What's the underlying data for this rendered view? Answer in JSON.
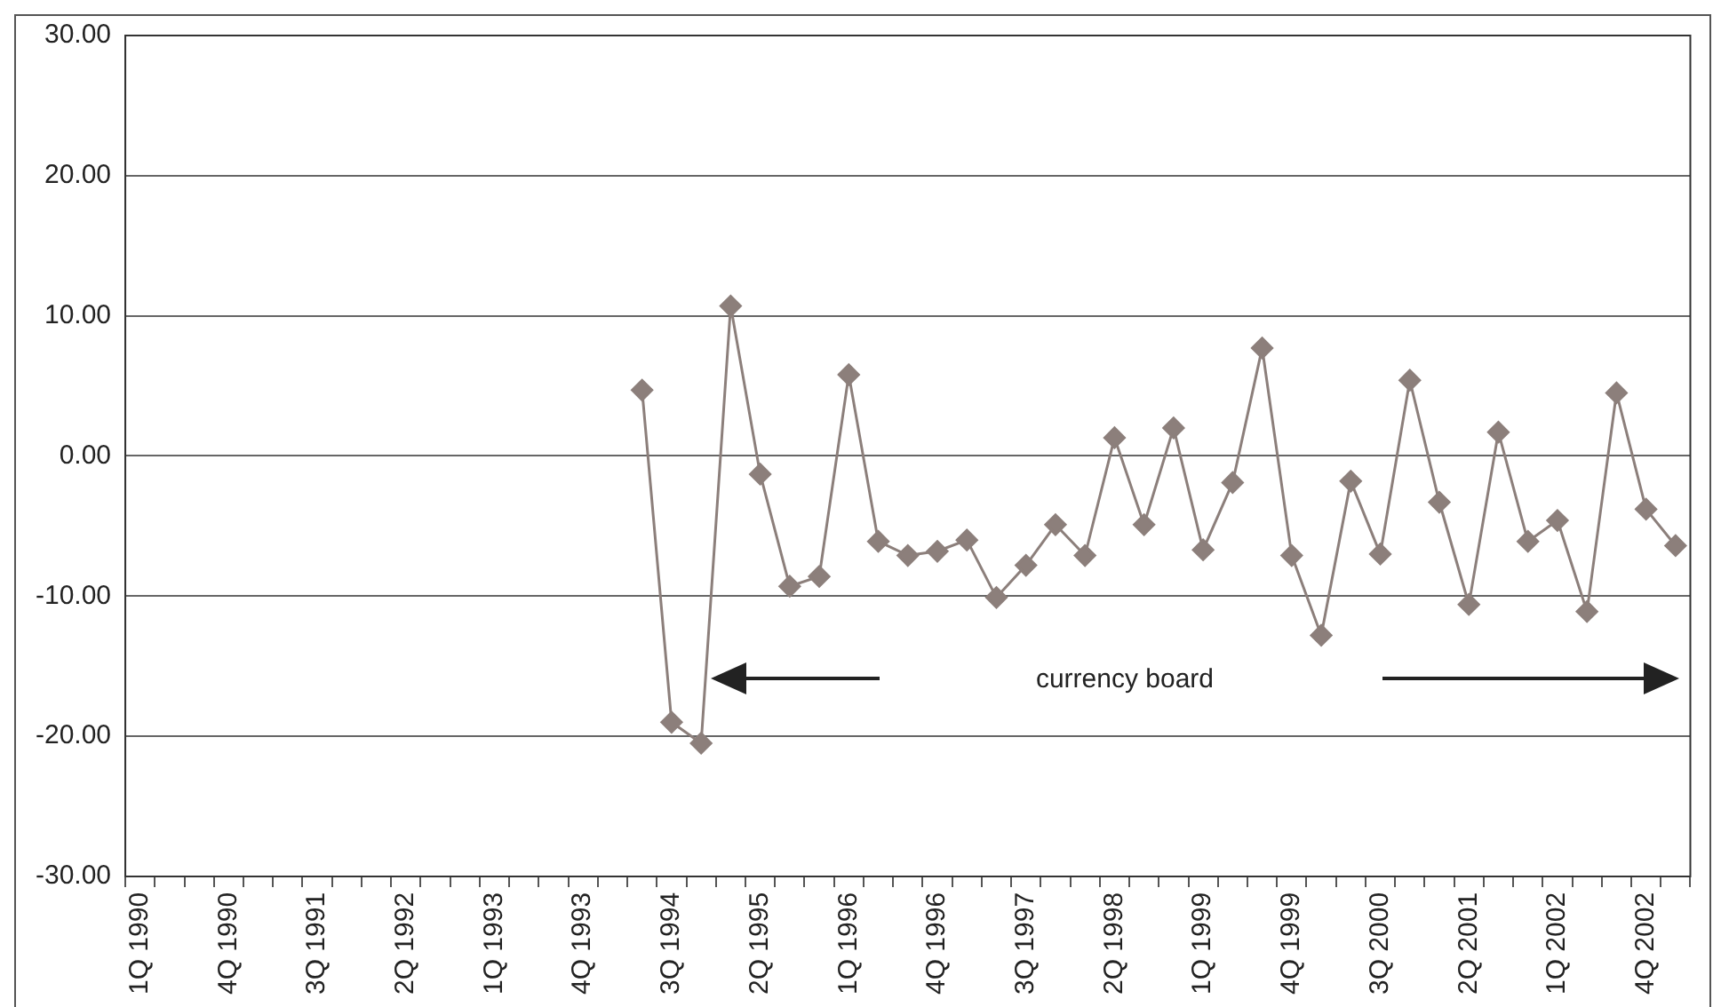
{
  "chart_data": {
    "type": "line",
    "categories": [
      "1Q 1990",
      null,
      null,
      "4Q 1990",
      null,
      null,
      "3Q 1991",
      null,
      null,
      "2Q 1992",
      null,
      null,
      "1Q 1993",
      null,
      null,
      "4Q 1993",
      null,
      null,
      "3Q 1994",
      null,
      null,
      "2Q 1995",
      null,
      null,
      "1Q 1996",
      null,
      null,
      "4Q 1996",
      null,
      null,
      "3Q 1997",
      null,
      null,
      "2Q 1998",
      null,
      null,
      "1Q 1999",
      null,
      null,
      "4Q 1999",
      null,
      null,
      "3Q 2000",
      null,
      null,
      "2Q 2001",
      null,
      null,
      "1Q 2002",
      null,
      null,
      "4Q 2002",
      null
    ],
    "series": [
      {
        "color": "#8c7f7b",
        "values": [
          null,
          null,
          null,
          null,
          null,
          null,
          null,
          null,
          null,
          null,
          null,
          null,
          null,
          null,
          null,
          null,
          null,
          4.7,
          -19.0,
          -20.5,
          10.7,
          -1.3,
          -9.3,
          -8.6,
          5.8,
          -6.1,
          -7.1,
          -6.8,
          -6.0,
          -10.1,
          -7.8,
          -4.9,
          -7.1,
          1.3,
          -4.9,
          2.0,
          -6.7,
          -1.9,
          7.7,
          -7.1,
          -12.8,
          -1.8,
          -7.0,
          5.4,
          -3.3,
          -10.6,
          1.7,
          -6.1,
          -4.6,
          -11.1,
          4.5,
          -3.8,
          -6.4
        ]
      }
    ],
    "ylim": [
      -30,
      30
    ],
    "yticks": [
      {
        "value": -30,
        "label": "-30.00"
      },
      {
        "value": -20,
        "label": "-20.00"
      },
      {
        "value": -10,
        "label": "-10.00"
      },
      {
        "value": 0,
        "label": "0.00"
      },
      {
        "value": 10,
        "label": "10.00"
      },
      {
        "value": 20,
        "label": "20.00"
      },
      {
        "value": 30,
        "label": "30.00"
      }
    ],
    "grid": "y",
    "legend": false,
    "marker": "diamond",
    "line_style": "solid",
    "annotations": [
      "currency board"
    ]
  }
}
